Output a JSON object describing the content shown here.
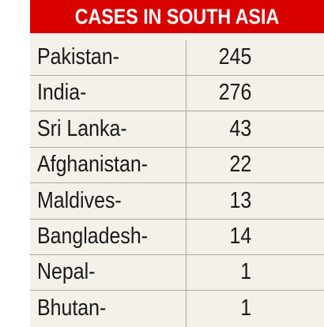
{
  "title": "CASES IN SOUTH ASIA",
  "colors": {
    "header_background": "#d90000",
    "header_text": "#ffffff",
    "panel_background": "#f3f1ea",
    "rule": "#a8a8a8",
    "body_text": "#1a1a1a"
  },
  "chart_data": {
    "type": "table",
    "title": "CASES IN SOUTH ASIA",
    "rows": [
      {
        "label": "Pakistan-",
        "value": "245"
      },
      {
        "label": "India-",
        "value": "276"
      },
      {
        "label": "Sri Lanka-",
        "value": "43"
      },
      {
        "label": "Afghanistan-",
        "value": "22"
      },
      {
        "label": "Maldives-",
        "value": "13"
      },
      {
        "label": "Bangladesh-",
        "value": "14"
      },
      {
        "label": "Nepal-",
        "value": "1"
      },
      {
        "label": "Bhutan-",
        "value": "1"
      }
    ]
  }
}
